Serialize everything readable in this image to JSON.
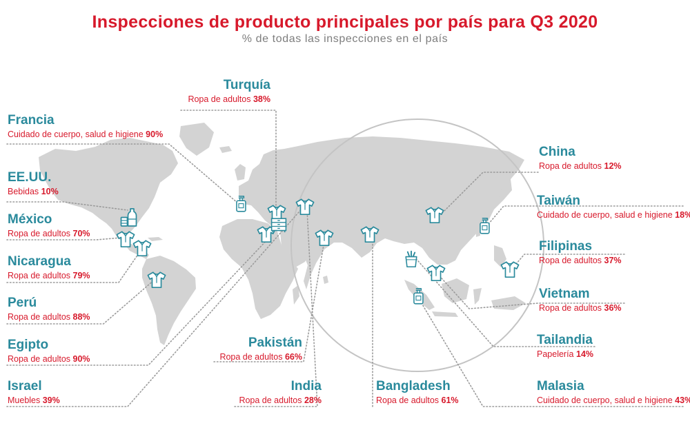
{
  "header": {
    "title": "Inspecciones de producto principales por país para Q3 2020",
    "subtitle": "% de todas las inspecciones en el país"
  },
  "colors": {
    "title": "#d7192b",
    "country_name": "#2a8a9c",
    "category": "#d7192b",
    "land": "#d3d3d3",
    "icons": "#2a8a9c"
  },
  "countries": {
    "turquia": {
      "name": "Turquía",
      "category": "Ropa de adultos",
      "percent": "38%",
      "icon": "shirt-icon"
    },
    "francia": {
      "name": "Francia",
      "category": "Cuidado de cuerpo, salud e higiene",
      "percent": "90%",
      "icon": "soap-dispenser-icon"
    },
    "eeuu": {
      "name": "EE.UU.",
      "category": "Bebidas",
      "percent": "10%",
      "icon": "beverage-icon"
    },
    "mexico": {
      "name": "México",
      "category": "Ropa de adultos",
      "percent": "70%",
      "icon": "shirt-icon"
    },
    "nicaragua": {
      "name": "Nicaragua",
      "category": "Ropa de adultos",
      "percent": "79%",
      "icon": "shirt-icon"
    },
    "peru": {
      "name": "Perú",
      "category": "Ropa de adultos",
      "percent": "88%",
      "icon": "shirt-icon"
    },
    "egipto": {
      "name": "Egipto",
      "category": "Ropa de adultos",
      "percent": "90%",
      "icon": "shirt-icon"
    },
    "israel": {
      "name": "Israel",
      "category": "Muebles",
      "percent": "39%",
      "icon": "furniture-icon"
    },
    "pakistan": {
      "name": "Pakistán",
      "category": "Ropa de adultos",
      "percent": "66%",
      "icon": "shirt-icon"
    },
    "india": {
      "name": "India",
      "category": "Ropa de adultos",
      "percent": "28%",
      "icon": "shirt-icon"
    },
    "bangladesh": {
      "name": "Bangladesh",
      "category": "Ropa de adultos",
      "percent": "61%",
      "icon": "shirt-icon"
    },
    "china": {
      "name": "China",
      "category": "Ropa de adultos",
      "percent": "12%",
      "icon": "shirt-icon"
    },
    "taiwan": {
      "name": "Taiwán",
      "category": "Cuidado de cuerpo, salud e higiene",
      "percent": "18%",
      "icon": "soap-dispenser-icon"
    },
    "filipinas": {
      "name": "Filipinas",
      "category": "Ropa de adultos",
      "percent": "37%",
      "icon": "shirt-icon"
    },
    "vietnam": {
      "name": "Vietnam",
      "category": "Ropa de adultos",
      "percent": "36%",
      "icon": "shirt-icon"
    },
    "tailandia": {
      "name": "Tailandia",
      "category": "Papelería",
      "percent": "14%",
      "icon": "stationery-icon"
    },
    "malasia": {
      "name": "Malasia",
      "category": "Cuidado de cuerpo, salud e higiene",
      "percent": "43%",
      "icon": "soap-dispenser-icon"
    }
  }
}
